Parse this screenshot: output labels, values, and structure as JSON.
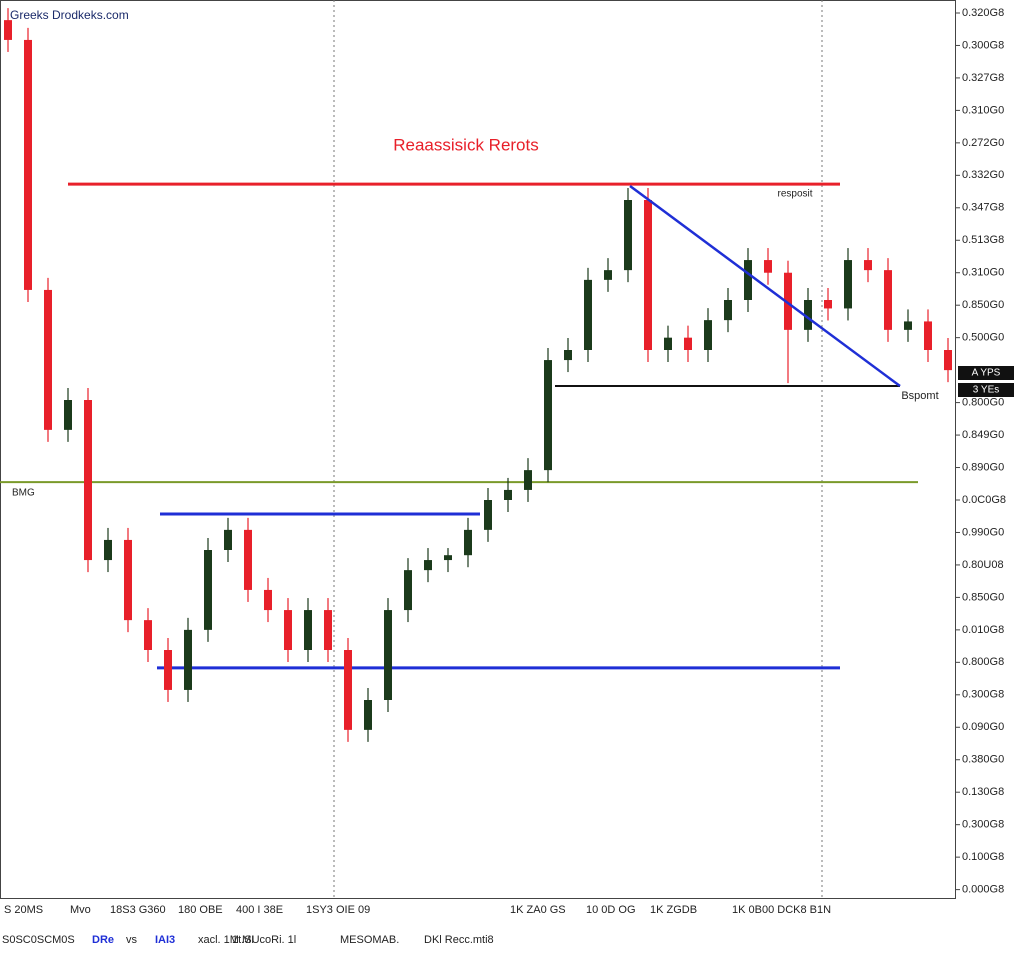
{
  "chart_data": {
    "type": "candlestick",
    "title": "Reaassisick Rerots",
    "watermark": "Greeks Drodkeks.com",
    "annotations": [
      "resposit",
      "Bspomt",
      "BMG"
    ],
    "price_tags": [
      "A YPS",
      "3 YEs"
    ],
    "open": [
      0.32678,
      0.32617,
      0.31847,
      0.31416,
      0.31508,
      0.31015,
      0.31077,
      0.3083,
      0.30738,
      0.30615,
      0.308,
      0.31046,
      0.31108,
      0.30923,
      0.30861,
      0.30738,
      0.30861,
      0.30738,
      0.30492,
      0.30584,
      0.30861,
      0.30984,
      0.31015,
      0.3103,
      0.31108,
      0.312,
      0.31231,
      0.31292,
      0.31631,
      0.31662,
      0.31878,
      0.31908,
      0.32124,
      0.31662,
      0.317,
      0.31662,
      0.31754,
      0.31816,
      0.31939,
      0.319,
      0.31724,
      0.31816,
      0.3179,
      0.31939,
      0.31908,
      0.31724,
      0.3175,
      0.31662
    ],
    "high": [
      0.32715,
      0.32654,
      0.31884,
      0.31545,
      0.31545,
      0.31114,
      0.31114,
      0.30867,
      0.30775,
      0.30837,
      0.31083,
      0.31145,
      0.31145,
      0.3096,
      0.30898,
      0.30898,
      0.30898,
      0.30775,
      0.30621,
      0.30898,
      0.31021,
      0.31052,
      0.31052,
      0.31145,
      0.31237,
      0.31268,
      0.31329,
      0.31668,
      0.31699,
      0.31915,
      0.31945,
      0.32161,
      0.32161,
      0.31737,
      0.31737,
      0.31791,
      0.31853,
      0.31976,
      0.31976,
      0.31937,
      0.31853,
      0.31853,
      0.31976,
      0.31976,
      0.31945,
      0.31787,
      0.31787,
      0.31699
    ],
    "low": [
      0.3258,
      0.3181,
      0.31379,
      0.31379,
      0.30978,
      0.30978,
      0.30793,
      0.30701,
      0.30578,
      0.30578,
      0.30763,
      0.31009,
      0.30886,
      0.30824,
      0.30701,
      0.30701,
      0.30701,
      0.30455,
      0.30455,
      0.30547,
      0.30824,
      0.30947,
      0.30978,
      0.30993,
      0.31071,
      0.31163,
      0.31194,
      0.31255,
      0.31594,
      0.31625,
      0.31841,
      0.31871,
      0.31625,
      0.31625,
      0.31625,
      0.31625,
      0.31717,
      0.31779,
      0.31863,
      0.3156,
      0.31687,
      0.31753,
      0.31753,
      0.31871,
      0.31687,
      0.31687,
      0.31625,
      0.31563
    ],
    "close": [
      0.32617,
      0.31847,
      0.31416,
      0.31508,
      0.31015,
      0.31077,
      0.3083,
      0.30738,
      0.30615,
      0.308,
      0.31046,
      0.31108,
      0.30923,
      0.30861,
      0.30738,
      0.30861,
      0.30738,
      0.30492,
      0.30584,
      0.30861,
      0.30984,
      0.31015,
      0.3103,
      0.31108,
      0.312,
      0.31231,
      0.31292,
      0.31631,
      0.31662,
      0.31878,
      0.31908,
      0.32124,
      0.31662,
      0.317,
      0.31662,
      0.31754,
      0.31816,
      0.31939,
      0.319,
      0.31724,
      0.31816,
      0.3179,
      0.31939,
      0.31908,
      0.31724,
      0.3175,
      0.31662,
      0.316
    ],
    "up_color": "#1b3a1b",
    "down_color": "#e8202a",
    "levels": [
      {
        "value": 0.32173,
        "color": "#e8202a"
      },
      {
        "value": 0.31157,
        "color": "#1f2fd6"
      },
      {
        "value": 0.30683,
        "color": "#1f2fd6"
      },
      {
        "value": 0.31255,
        "color": "#7a9a2a"
      },
      {
        "value": 0.31551,
        "color": "#111111"
      }
    ],
    "trendline": {
      "values": [
        0.32167,
        0.31551
      ],
      "color": "#1f2fd6"
    },
    "ylim": [
      0.29968,
      0.3274
    ],
    "yticks": [
      {
        "value": 0.327,
        "label": "0.320G8"
      },
      {
        "value": 0.326,
        "label": "0.300G8"
      },
      {
        "value": 0.325,
        "label": "0.327G8"
      },
      {
        "value": 0.324,
        "label": "0.310G0"
      },
      {
        "value": 0.323,
        "label": "0.272G0"
      },
      {
        "value": 0.322,
        "label": "0.332G0"
      },
      {
        "value": 0.321,
        "label": "0.347G8"
      },
      {
        "value": 0.32,
        "label": "0.513G8"
      },
      {
        "value": 0.319,
        "label": "0.310G0"
      },
      {
        "value": 0.318,
        "label": "0.850G0"
      },
      {
        "value": 0.317,
        "label": "0.500G0"
      },
      {
        "value": 0.315,
        "label": "0.800G0"
      },
      {
        "value": 0.314,
        "label": "0.849G0"
      },
      {
        "value": 0.313,
        "label": "0.890G0"
      },
      {
        "value": 0.312,
        "label": "0.0C0G8"
      },
      {
        "value": 0.311,
        "label": "0.990G0"
      },
      {
        "value": 0.31,
        "label": "0.80U08"
      },
      {
        "value": 0.309,
        "label": "0.850G0"
      },
      {
        "value": 0.308,
        "label": "0.010G8"
      },
      {
        "value": 0.307,
        "label": "0.800G8"
      },
      {
        "value": 0.306,
        "label": "0.300G8"
      },
      {
        "value": 0.305,
        "label": "0.090G0"
      },
      {
        "value": 0.304,
        "label": "0.380G0"
      },
      {
        "value": 0.303,
        "label": "0.130G8"
      },
      {
        "value": 0.302,
        "label": "0.300G8"
      },
      {
        "value": 0.301,
        "label": "0.100G8"
      },
      {
        "value": 0.3,
        "label": "0.000G8"
      }
    ],
    "x_labels": [
      "S 20MS",
      "Mvo",
      "18S3 G360",
      "180 OBE",
      "400 I 38E",
      "1SY3 OIE 09",
      "1K ZA0 GS",
      "10 0D OG",
      "1K ZGDB",
      "1K 0B00 DCK8 B1N"
    ],
    "footer": [
      "S0SC0SCM0S",
      "DRe",
      "vs",
      "IAI3",
      "xacl. 1M MI",
      "1t.SUcoRi. 1l",
      "MESOMAB.",
      "DKl Recc.mti8"
    ]
  }
}
